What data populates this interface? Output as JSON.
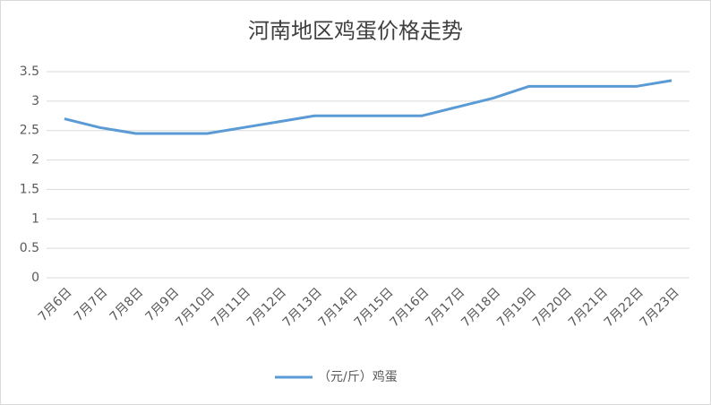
{
  "chart_data": {
    "type": "line",
    "title": "河南地区鸡蛋价格走势",
    "categories": [
      "7月6日",
      "7月7日",
      "7月8日",
      "7月9日",
      "7月10日",
      "7月11日",
      "7月12日",
      "7月13日",
      "7月14日",
      "7月15日",
      "7月16日",
      "7月17日",
      "7月18日",
      "7月19日",
      "7月20日",
      "7月21日",
      "7月22日",
      "7月23日"
    ],
    "series": [
      {
        "name": "（元/斤）鸡蛋",
        "color": "#5b9bd5",
        "values": [
          2.7,
          2.55,
          2.45,
          2.45,
          2.45,
          2.55,
          2.65,
          2.75,
          2.75,
          2.75,
          2.75,
          2.9,
          3.05,
          3.25,
          3.25,
          3.25,
          3.25,
          3.35
        ]
      }
    ],
    "ylim": [
      0,
      3.5
    ],
    "yticks": [
      0,
      0.5,
      1,
      1.5,
      2,
      2.5,
      3,
      3.5
    ],
    "grid": true,
    "legend": "bottom"
  }
}
